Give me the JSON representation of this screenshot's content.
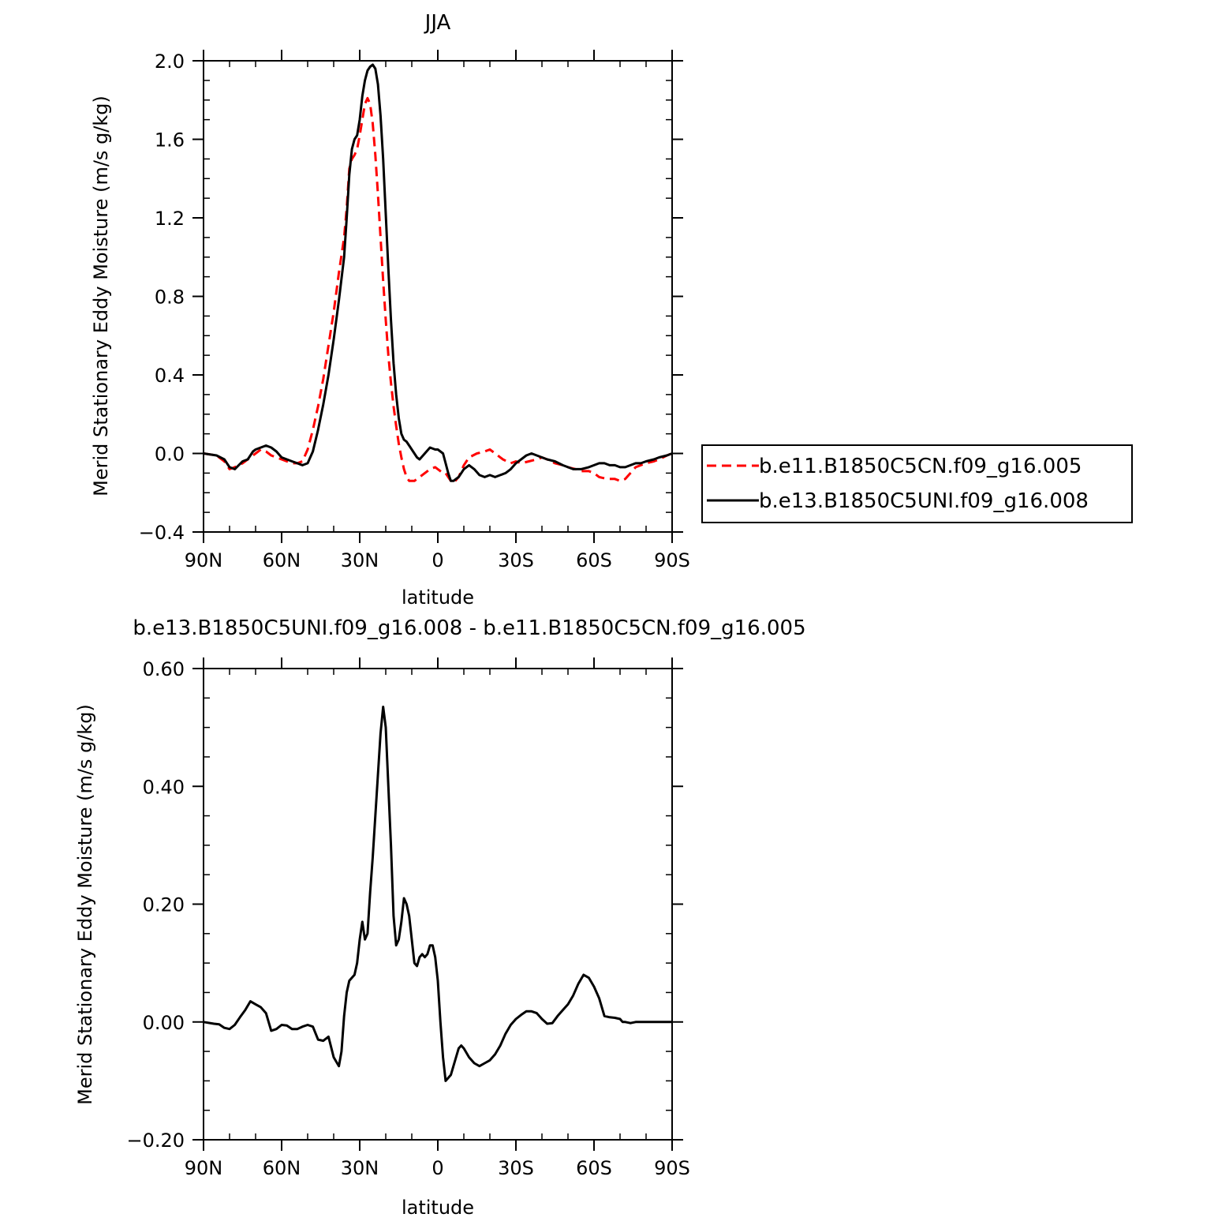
{
  "chart_data": [
    {
      "type": "line",
      "title": "JJA",
      "xlabel": "latitude",
      "ylabel": "Merid Stationary Eddy Moisture (m/s g/kg)",
      "xlim": [
        90,
        -90
      ],
      "ylim": [
        -0.4,
        2.0
      ],
      "x_ticks": [
        90,
        60,
        30,
        0,
        -30,
        -60,
        -90
      ],
      "x_tick_labels": [
        "90N",
        "60N",
        "30N",
        "0",
        "30S",
        "60S",
        "90S"
      ],
      "y_ticks": [
        -0.4,
        0.0,
        0.4,
        0.8,
        1.2,
        1.6,
        2.0
      ],
      "y_tick_labels": [
        "-0.4",
        "0.0",
        "0.4",
        "0.8",
        "1.2",
        "1.6",
        "2.0"
      ],
      "grid": false,
      "legend_position": "right",
      "series": [
        {
          "name": "b.e11.B1850C5CN.f09_g16.005",
          "color": "#ff0000",
          "dash": "dashed",
          "x": [
            90,
            85,
            82,
            80,
            78,
            75,
            72,
            70,
            68,
            66,
            64,
            62,
            60,
            58,
            56,
            54,
            52,
            50,
            48,
            46,
            44,
            42,
            40,
            38,
            36,
            35,
            34,
            33,
            32,
            31,
            30,
            29,
            28,
            27,
            26,
            25,
            24,
            23,
            22,
            21,
            20,
            19,
            18,
            17,
            16,
            15,
            14,
            13,
            12,
            11,
            10,
            9,
            8,
            7,
            6,
            5,
            3,
            1,
            0,
            -2,
            -3,
            -4,
            -5,
            -6,
            -8,
            -10,
            -12,
            -15,
            -18,
            -20,
            -22,
            -25,
            -28,
            -30,
            -32,
            -35,
            -38,
            -40,
            -42,
            -45,
            -48,
            -50,
            -53,
            -55,
            -58,
            -60,
            -62,
            -65,
            -68,
            -70,
            -72,
            -74,
            -76,
            -78,
            -80,
            -83,
            -85,
            -88,
            -90
          ],
          "y": [
            0.0,
            -0.01,
            -0.04,
            -0.08,
            -0.07,
            -0.05,
            -0.02,
            0.0,
            0.02,
            0.01,
            -0.01,
            -0.02,
            -0.03,
            -0.04,
            -0.05,
            -0.05,
            -0.04,
            0.02,
            0.12,
            0.24,
            0.38,
            0.55,
            0.72,
            0.92,
            1.1,
            1.25,
            1.45,
            1.5,
            1.52,
            1.55,
            1.62,
            1.7,
            1.78,
            1.81,
            1.78,
            1.68,
            1.52,
            1.32,
            1.1,
            0.88,
            0.68,
            0.5,
            0.36,
            0.24,
            0.14,
            0.05,
            -0.02,
            -0.08,
            -0.12,
            -0.14,
            -0.14,
            -0.14,
            -0.13,
            -0.12,
            -0.11,
            -0.1,
            -0.08,
            -0.07,
            -0.08,
            -0.1,
            -0.1,
            -0.12,
            -0.14,
            -0.15,
            -0.12,
            -0.06,
            -0.02,
            0.0,
            0.01,
            0.02,
            0.0,
            -0.03,
            -0.05,
            -0.04,
            -0.05,
            -0.04,
            -0.03,
            -0.02,
            -0.03,
            -0.05,
            -0.06,
            -0.07,
            -0.08,
            -0.09,
            -0.09,
            -0.1,
            -0.12,
            -0.13,
            -0.13,
            -0.14,
            -0.13,
            -0.1,
            -0.07,
            -0.06,
            -0.05,
            -0.04,
            -0.03,
            -0.01,
            0.0
          ]
        },
        {
          "name": "b.e13.B1850C5UNI.f09_g16.008",
          "color": "#000000",
          "dash": "solid",
          "x": [
            90,
            85,
            82,
            80,
            78,
            75,
            73,
            71,
            70,
            68,
            66,
            64,
            62,
            60,
            58,
            56,
            54,
            52,
            50,
            48,
            46,
            44,
            42,
            40,
            38,
            36,
            35,
            34,
            33,
            32,
            31,
            30,
            29,
            28,
            27,
            26,
            25,
            24,
            23,
            22,
            21,
            20,
            19,
            18,
            17,
            16,
            15,
            14,
            13,
            12,
            11,
            10,
            9,
            8,
            7,
            5,
            3,
            1,
            0,
            -2,
            -3,
            -4,
            -5,
            -6,
            -7,
            -8,
            -10,
            -12,
            -14,
            -16,
            -18,
            -20,
            -22,
            -24,
            -26,
            -28,
            -30,
            -32,
            -34,
            -36,
            -38,
            -40,
            -42,
            -45,
            -48,
            -50,
            -52,
            -55,
            -58,
            -60,
            -62,
            -64,
            -66,
            -68,
            -70,
            -72,
            -74,
            -76,
            -78,
            -80,
            -83,
            -85,
            -88,
            -90
          ],
          "y": [
            0.0,
            -0.01,
            -0.03,
            -0.07,
            -0.08,
            -0.04,
            -0.03,
            0.01,
            0.02,
            0.03,
            0.04,
            0.03,
            0.01,
            -0.02,
            -0.03,
            -0.04,
            -0.05,
            -0.06,
            -0.05,
            0.01,
            0.12,
            0.25,
            0.4,
            0.58,
            0.78,
            1.0,
            1.2,
            1.42,
            1.55,
            1.6,
            1.62,
            1.7,
            1.82,
            1.9,
            1.95,
            1.97,
            1.98,
            1.96,
            1.88,
            1.72,
            1.5,
            1.22,
            0.94,
            0.68,
            0.46,
            0.3,
            0.18,
            0.1,
            0.07,
            0.06,
            0.04,
            0.02,
            0.0,
            -0.02,
            -0.03,
            0.0,
            0.03,
            0.02,
            0.02,
            0.0,
            -0.05,
            -0.1,
            -0.14,
            -0.14,
            -0.13,
            -0.12,
            -0.08,
            -0.06,
            -0.08,
            -0.11,
            -0.12,
            -0.11,
            -0.12,
            -0.11,
            -0.1,
            -0.08,
            -0.05,
            -0.03,
            -0.01,
            0.0,
            -0.01,
            -0.02,
            -0.03,
            -0.04,
            -0.06,
            -0.07,
            -0.08,
            -0.08,
            -0.07,
            -0.06,
            -0.05,
            -0.05,
            -0.06,
            -0.06,
            -0.07,
            -0.07,
            -0.06,
            -0.05,
            -0.05,
            -0.04,
            -0.03,
            -0.02,
            -0.01,
            0.0
          ]
        }
      ]
    },
    {
      "type": "line",
      "title": "b.e13.B1850C5UNI.f09_g16.008 - b.e11.B1850C5CN.f09_g16.005",
      "xlabel": "latitude",
      "ylabel": "Merid Stationary Eddy Moisture (m/s g/kg)",
      "xlim": [
        90,
        -90
      ],
      "ylim": [
        -0.2,
        0.6
      ],
      "x_ticks": [
        90,
        60,
        30,
        0,
        -30,
        -60,
        -90
      ],
      "x_tick_labels": [
        "90N",
        "60N",
        "30N",
        "0",
        "30S",
        "60S",
        "90S"
      ],
      "y_ticks": [
        -0.2,
        0.0,
        0.2,
        0.4,
        0.6
      ],
      "y_tick_labels": [
        "-0.20",
        "0.00",
        "0.20",
        "0.40",
        "0.60"
      ],
      "grid": false,
      "series": [
        {
          "color": "#000000",
          "dash": "solid",
          "x": [
            90,
            86,
            84,
            82,
            80,
            78,
            76,
            74,
            72,
            70,
            68,
            66,
            64,
            62,
            60,
            58,
            56,
            54,
            52,
            50,
            48,
            46,
            44,
            42,
            40,
            38,
            37,
            36,
            35,
            34,
            33,
            32,
            31,
            30,
            29,
            28,
            27,
            26,
            25,
            24,
            23,
            22,
            21,
            20,
            19,
            18,
            17,
            16,
            15,
            14,
            13,
            12,
            11,
            10,
            9,
            8,
            7,
            6,
            5,
            4,
            3,
            2,
            1,
            0,
            -1,
            -2,
            -3,
            -4,
            -5,
            -6,
            -7,
            -8,
            -9,
            -10,
            -12,
            -14,
            -16,
            -18,
            -20,
            -22,
            -24,
            -26,
            -28,
            -30,
            -32,
            -34,
            -36,
            -38,
            -40,
            -42,
            -44,
            -46,
            -48,
            -50,
            -52,
            -54,
            -56,
            -58,
            -60,
            -62,
            -64,
            -66,
            -68,
            -70,
            -71,
            -72,
            -74,
            -76,
            -78,
            -80,
            -82,
            -84,
            -86,
            -88,
            -90
          ],
          "y": [
            0.0,
            -0.003,
            -0.004,
            -0.01,
            -0.012,
            -0.005,
            0.008,
            0.02,
            0.035,
            0.03,
            0.025,
            0.015,
            -0.015,
            -0.012,
            -0.005,
            -0.006,
            -0.012,
            -0.012,
            -0.008,
            -0.005,
            -0.008,
            -0.03,
            -0.032,
            -0.025,
            -0.06,
            -0.075,
            -0.05,
            0.01,
            0.05,
            0.07,
            0.075,
            0.08,
            0.1,
            0.14,
            0.17,
            0.14,
            0.15,
            0.22,
            0.28,
            0.35,
            0.42,
            0.49,
            0.535,
            0.5,
            0.4,
            0.3,
            0.18,
            0.13,
            0.14,
            0.17,
            0.21,
            0.2,
            0.18,
            0.14,
            0.1,
            0.095,
            0.11,
            0.115,
            0.11,
            0.115,
            0.13,
            0.13,
            0.11,
            0.07,
            0.0,
            -0.06,
            -0.1,
            -0.095,
            -0.09,
            -0.075,
            -0.06,
            -0.045,
            -0.04,
            -0.045,
            -0.06,
            -0.07,
            -0.075,
            -0.07,
            -0.065,
            -0.055,
            -0.04,
            -0.02,
            -0.005,
            0.005,
            0.012,
            0.018,
            0.018,
            0.015,
            0.005,
            -0.003,
            -0.002,
            0.01,
            0.02,
            0.03,
            0.045,
            0.065,
            0.08,
            0.075,
            0.06,
            0.04,
            0.01,
            0.008,
            0.007,
            0.005,
            0.0,
            0.0,
            -0.002,
            0.0,
            0.0,
            0.0,
            0.0,
            0.0,
            0.0,
            0.0,
            0.0
          ]
        }
      ]
    }
  ]
}
